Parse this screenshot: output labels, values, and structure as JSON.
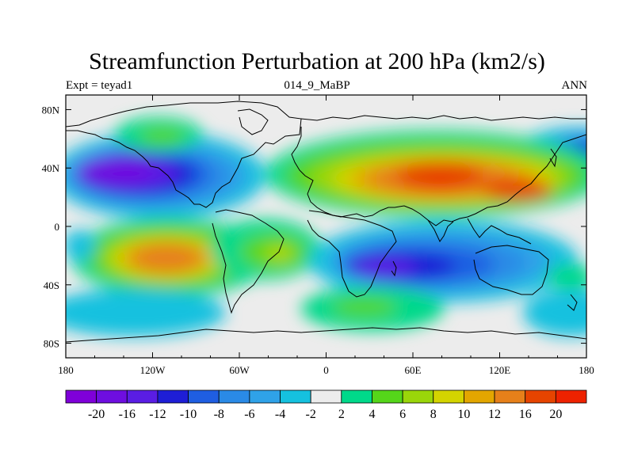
{
  "title": "Streamfunction Perturbation at 200 hPa (km2/s)",
  "left_string": "Expt = teyad1",
  "center_string": "014_9_MaBP",
  "right_string": "ANN",
  "chart_data": {
    "type": "heatmap",
    "projection": "cylindrical-equidistant",
    "variable": "Streamfunction Perturbation",
    "level": "200 hPa",
    "units": "km2/s",
    "xlim": [
      -180,
      180
    ],
    "ylim": [
      -90,
      90
    ],
    "x_ticks": [
      {
        "value": -180,
        "label": "180"
      },
      {
        "value": -120,
        "label": "120W"
      },
      {
        "value": -60,
        "label": "60W"
      },
      {
        "value": 0,
        "label": "0"
      },
      {
        "value": 60,
        "label": "60E"
      },
      {
        "value": 120,
        "label": "120E"
      },
      {
        "value": 180,
        "label": "180"
      }
    ],
    "y_ticks": [
      {
        "value": 80,
        "label": "80N"
      },
      {
        "value": 40,
        "label": "40N"
      },
      {
        "value": 0,
        "label": "0"
      },
      {
        "value": -40,
        "label": "40S"
      },
      {
        "value": -80,
        "label": "80S"
      }
    ],
    "colorbar": {
      "colors": [
        "#7f00d9",
        "#6e0ee0",
        "#5a1de4",
        "#1e1ed6",
        "#1f5ee2",
        "#2a8ae6",
        "#2fa2e8",
        "#15c1df",
        "#ececec",
        "#00d98a",
        "#55d61a",
        "#9ad60a",
        "#d4d400",
        "#e3a600",
        "#e6801a",
        "#e64400",
        "#ee2200"
      ],
      "label_values": [
        -20,
        -16,
        -12,
        -10,
        -8,
        -6,
        -4,
        -2,
        2,
        4,
        6,
        8,
        10,
        12,
        16,
        20
      ],
      "labels": [
        "-20",
        "-16",
        "-12",
        "-10",
        "-8",
        "-6",
        "-4",
        "-2",
        "2",
        "4",
        "6",
        "8",
        "10",
        "12",
        "16",
        "20"
      ]
    },
    "features": [
      {
        "name": "North Pacific low",
        "lon": -120,
        "lat": 40,
        "peak": -20
      },
      {
        "name": "Eurasian high",
        "lon": 70,
        "lat": 38,
        "peak": 20
      },
      {
        "name": "South Pacific high",
        "lon": -115,
        "lat": -25,
        "peak": 16
      },
      {
        "name": "Southern Indian Ocean low",
        "lon": 60,
        "lat": -30,
        "peak": -20
      },
      {
        "name": "South Atlantic high",
        "lon": -30,
        "lat": -20,
        "peak": 8
      },
      {
        "name": "Southern Ocean high",
        "lon": 25,
        "lat": -55,
        "peak": 8
      },
      {
        "name": "North Atlantic high",
        "lon": -100,
        "lat": 60,
        "peak": 6
      },
      {
        "name": "Western Pacific low",
        "lon": 170,
        "lat": 50,
        "peak": -10
      }
    ],
    "continent_outlines": "coastlines"
  }
}
